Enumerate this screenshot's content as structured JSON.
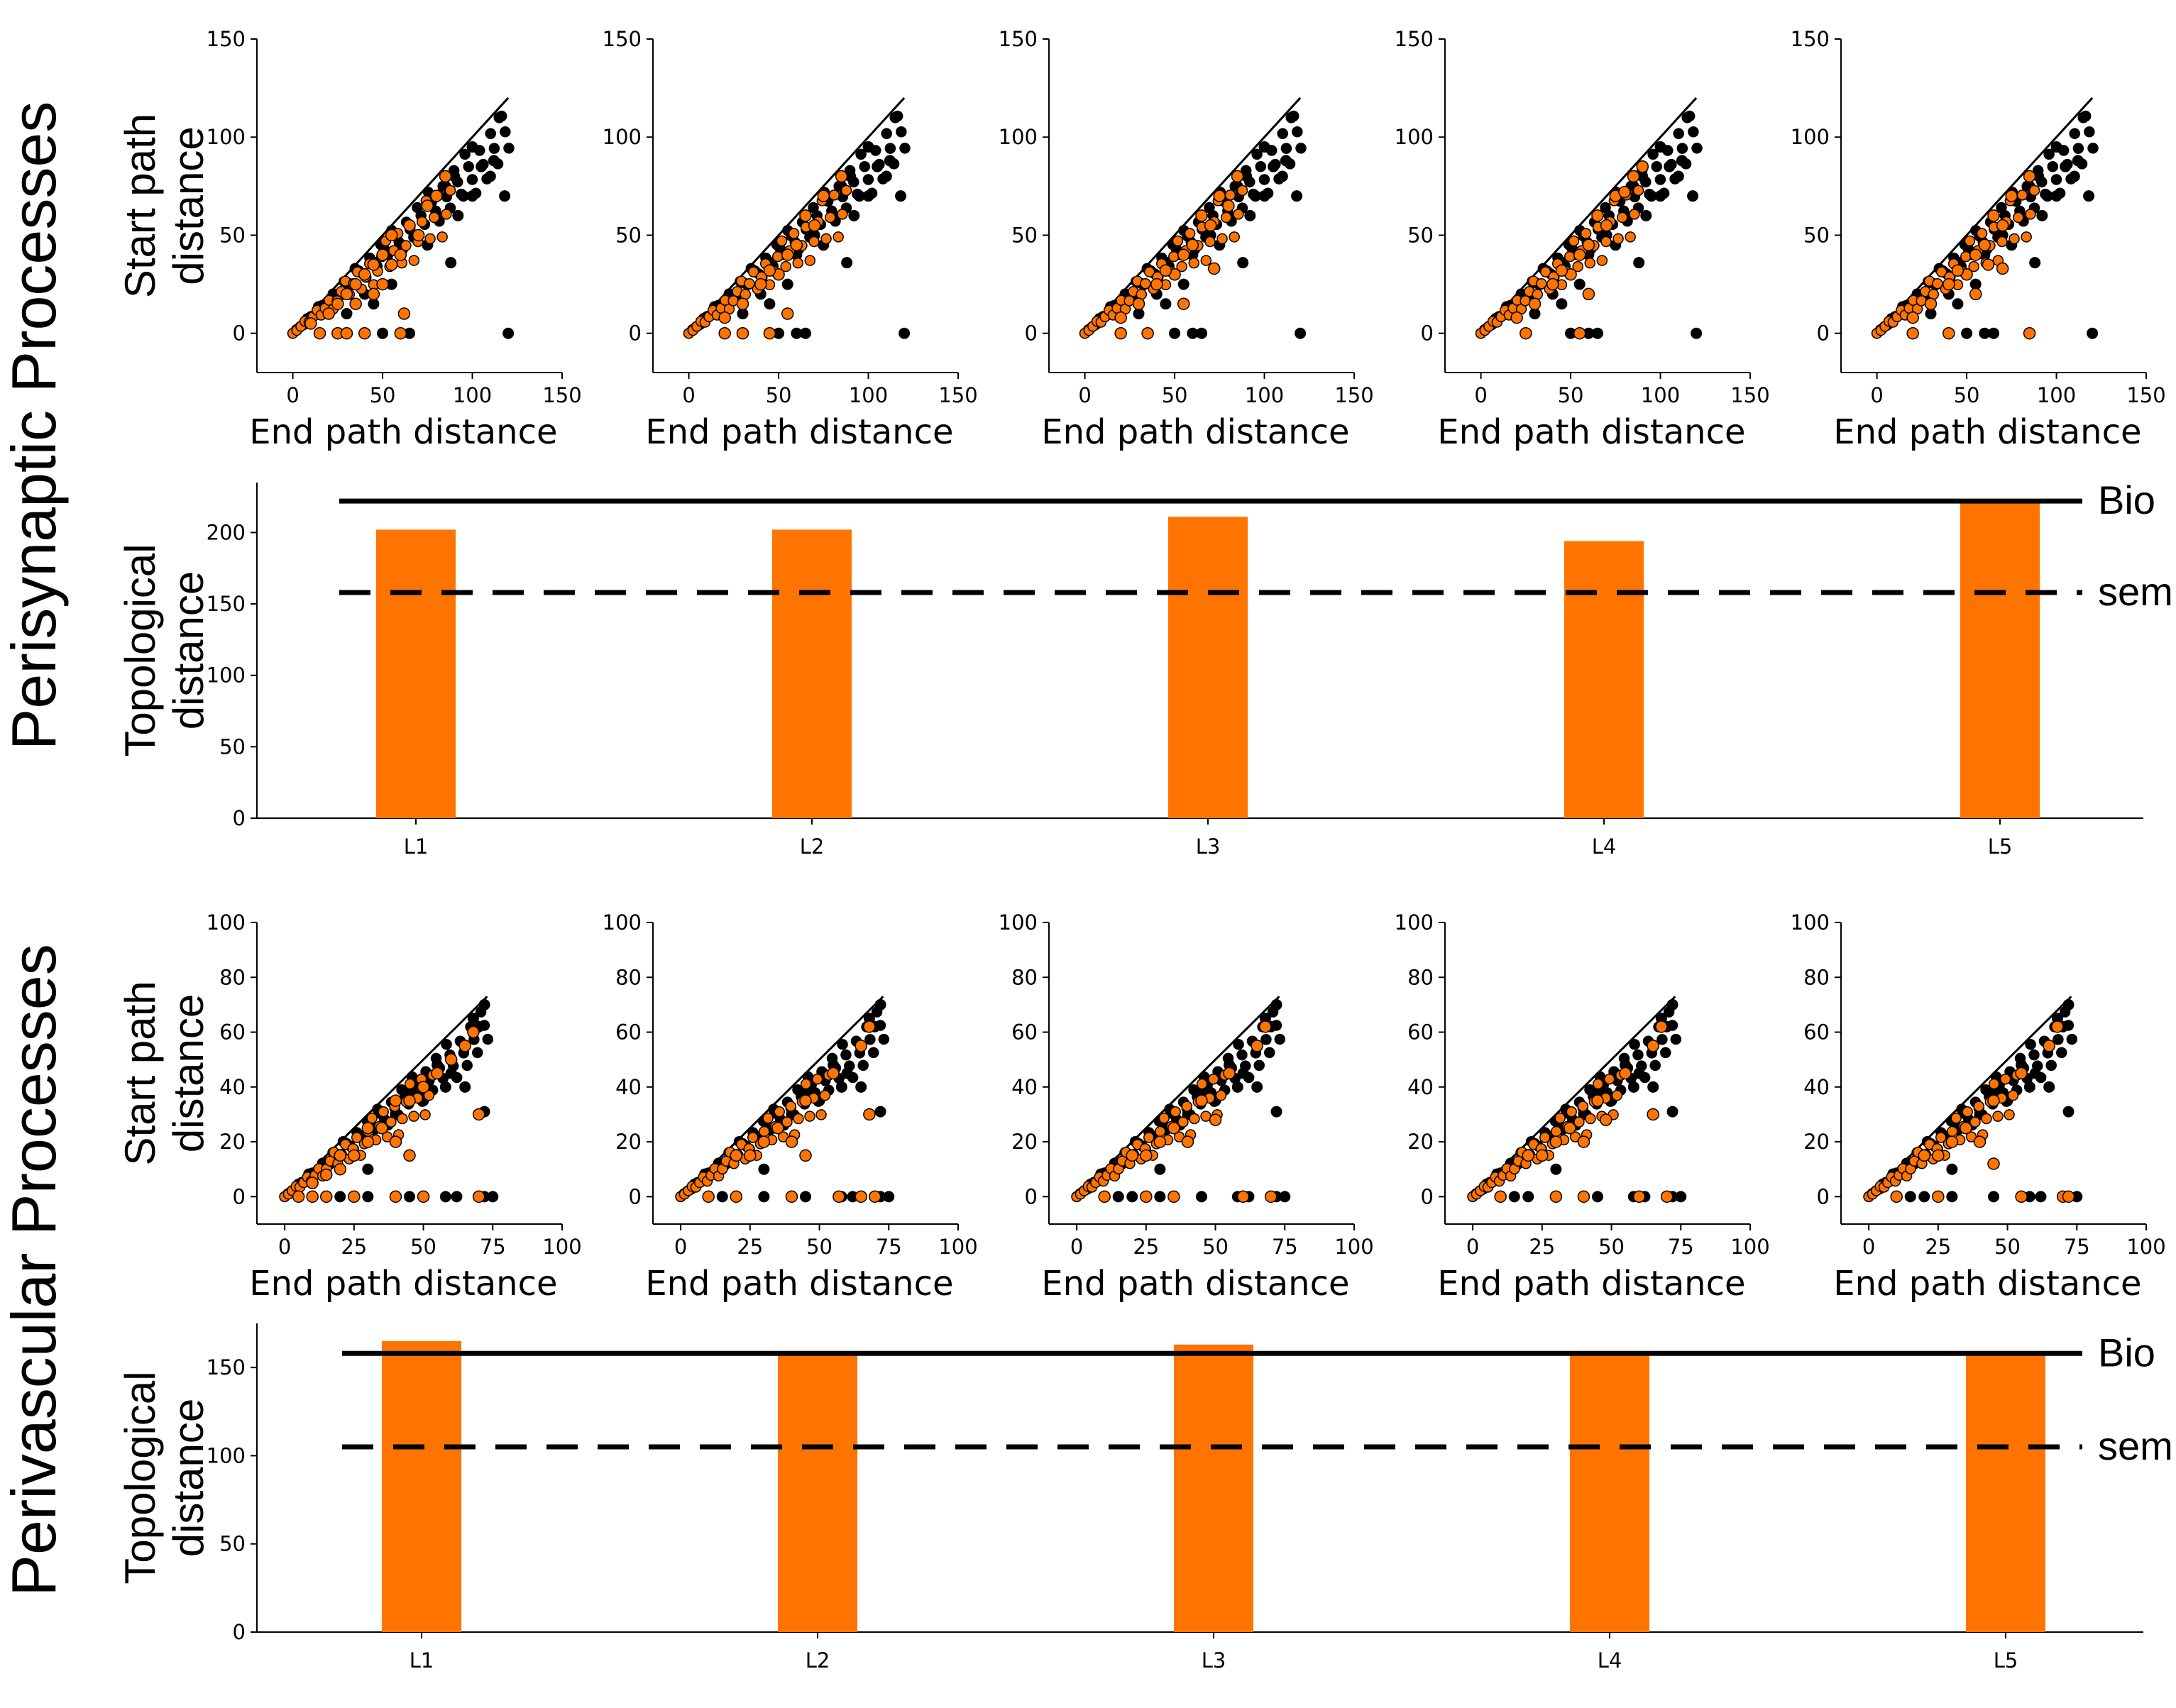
{
  "colors": {
    "model": "#ff7400",
    "bio": "#000000",
    "axis": "#000000"
  },
  "sections": [
    {
      "title": "Perisynaptic Processes"
    },
    {
      "title": "Perivascular Processes"
    }
  ],
  "chart_data": [
    {
      "type": "scatter",
      "section": "Perisynaptic Processes",
      "panels": [
        "L1",
        "L2",
        "L3",
        "L4",
        "L5"
      ],
      "xlabel": "End path distance",
      "ylabel": "Start path distance",
      "xlim": [
        -20,
        150
      ],
      "ylim": [
        -20,
        150
      ],
      "xticks": [
        0,
        50,
        100,
        150
      ],
      "yticks": [
        0,
        50,
        100,
        150
      ],
      "series": [
        {
          "name": "Bio",
          "color": "#000000",
          "points": [
            [
              120,
              0
            ],
            [
              88,
              36
            ],
            [
              118,
              70
            ],
            [
              92,
              60
            ],
            [
              100,
              70
            ],
            [
              105,
              85
            ],
            [
              112,
              88
            ],
            [
              110,
              80
            ],
            [
              60,
              40
            ],
            [
              70,
              50
            ],
            [
              80,
              60
            ],
            [
              75,
              45
            ],
            [
              95,
              70
            ],
            [
              55,
              25
            ],
            [
              45,
              15
            ],
            [
              60,
              0
            ],
            [
              65,
              0
            ],
            [
              40,
              20
            ],
            [
              50,
              0
            ],
            [
              85,
              75
            ],
            [
              115,
              110
            ],
            [
              100,
              95
            ],
            [
              90,
              80
            ],
            [
              30,
              10
            ]
          ]
        },
        {
          "name": "L1",
          "color": "#ff7400",
          "points": [
            [
              15,
              0
            ],
            [
              25,
              0
            ],
            [
              30,
              0
            ],
            [
              40,
              0
            ],
            [
              60,
              0
            ],
            [
              62,
              10
            ],
            [
              45,
              20
            ],
            [
              35,
              15
            ],
            [
              50,
              25
            ],
            [
              55,
              35
            ],
            [
              60,
              40
            ],
            [
              70,
              50
            ],
            [
              65,
              55
            ],
            [
              75,
              65
            ],
            [
              80,
              70
            ],
            [
              85,
              80
            ],
            [
              40,
              30
            ],
            [
              30,
              20
            ],
            [
              20,
              10
            ],
            [
              10,
              5
            ],
            [
              50,
              40
            ],
            [
              55,
              50
            ],
            [
              45,
              35
            ],
            [
              25,
              15
            ],
            [
              35,
              25
            ]
          ]
        }
      ],
      "extra_model_points": {
        "L2": [
          [
            20,
            0
          ],
          [
            30,
            0
          ],
          [
            45,
            0
          ],
          [
            55,
            10
          ],
          [
            50,
            30
          ],
          [
            60,
            45
          ],
          [
            70,
            55
          ],
          [
            40,
            25
          ],
          [
            30,
            15
          ],
          [
            20,
            8
          ],
          [
            65,
            60
          ],
          [
            75,
            70
          ],
          [
            85,
            80
          ],
          [
            55,
            40
          ],
          [
            45,
            32
          ]
        ],
        "L3": [
          [
            20,
            0
          ],
          [
            35,
            0
          ],
          [
            72,
            33
          ],
          [
            55,
            15
          ],
          [
            50,
            30
          ],
          [
            60,
            45
          ],
          [
            70,
            55
          ],
          [
            40,
            25
          ],
          [
            30,
            15
          ],
          [
            20,
            8
          ],
          [
            65,
            60
          ],
          [
            75,
            70
          ],
          [
            85,
            80
          ],
          [
            55,
            40
          ],
          [
            45,
            32
          ],
          [
            80,
            65
          ]
        ],
        "L4": [
          [
            25,
            0
          ],
          [
            55,
            0
          ],
          [
            60,
            20
          ],
          [
            50,
            30
          ],
          [
            60,
            45
          ],
          [
            70,
            55
          ],
          [
            40,
            25
          ],
          [
            30,
            15
          ],
          [
            20,
            8
          ],
          [
            65,
            60
          ],
          [
            75,
            70
          ],
          [
            85,
            80
          ],
          [
            55,
            40
          ],
          [
            45,
            32
          ],
          [
            80,
            72
          ],
          [
            90,
            85
          ]
        ],
        "L5": [
          [
            20,
            0
          ],
          [
            40,
            0
          ],
          [
            85,
            0
          ],
          [
            70,
            33
          ],
          [
            62,
            35
          ],
          [
            55,
            20
          ],
          [
            50,
            30
          ],
          [
            60,
            45
          ],
          [
            70,
            55
          ],
          [
            40,
            25
          ],
          [
            30,
            15
          ],
          [
            20,
            8
          ],
          [
            65,
            60
          ],
          [
            75,
            70
          ],
          [
            85,
            80
          ],
          [
            55,
            40
          ],
          [
            45,
            32
          ]
        ]
      }
    },
    {
      "type": "bar",
      "section": "Perisynaptic Processes",
      "categories": [
        "L1",
        "L2",
        "L3",
        "L4",
        "L5"
      ],
      "values": [
        202,
        202,
        211,
        194,
        221
      ],
      "ylabel": "Topological distance",
      "ylim": [
        0,
        235
      ],
      "yticks": [
        0,
        50,
        100,
        150,
        200
      ],
      "reference_lines": [
        {
          "label": "Bio",
          "value": 222,
          "style": "solid"
        },
        {
          "label": "sem",
          "value": 158,
          "style": "dashed"
        }
      ]
    },
    {
      "type": "scatter",
      "section": "Perivascular Processes",
      "panels": [
        "L1",
        "L2",
        "L3",
        "L4",
        "L5"
      ],
      "xlabel": "End path distance",
      "ylabel": "Start path distance",
      "xlim": [
        -10,
        100
      ],
      "ylim": [
        -10,
        100
      ],
      "xticks": [
        0,
        25,
        50,
        75,
        100
      ],
      "yticks": [
        0,
        20,
        40,
        60,
        80,
        100
      ],
      "series": [
        {
          "name": "Bio",
          "color": "#000000",
          "points": [
            [
              30,
              0
            ],
            [
              45,
              0
            ],
            [
              58,
              0
            ],
            [
              62,
              0
            ],
            [
              70,
              0
            ],
            [
              72,
              0
            ],
            [
              75,
              0
            ],
            [
              72,
              31
            ],
            [
              65,
              40
            ],
            [
              60,
              45
            ],
            [
              55,
              48
            ],
            [
              58,
              40
            ],
            [
              50,
              35
            ],
            [
              45,
              38
            ],
            [
              40,
              30
            ],
            [
              35,
              25
            ],
            [
              70,
              62
            ],
            [
              68,
              65
            ],
            [
              72,
              70
            ],
            [
              30,
              10
            ],
            [
              20,
              0
            ],
            [
              15,
              0
            ]
          ]
        },
        {
          "name": "L1",
          "color": "#ff7400",
          "points": [
            [
              5,
              0
            ],
            [
              10,
              0
            ],
            [
              15,
              0
            ],
            [
              25,
              0
            ],
            [
              40,
              0
            ],
            [
              50,
              0
            ],
            [
              70,
              0
            ],
            [
              70,
              30
            ],
            [
              45,
              15
            ],
            [
              40,
              20
            ],
            [
              35,
              25
            ],
            [
              30,
              20
            ],
            [
              25,
              15
            ],
            [
              20,
              10
            ],
            [
              15,
              8
            ],
            [
              45,
              35
            ],
            [
              50,
              40
            ],
            [
              55,
              45
            ],
            [
              60,
              50
            ],
            [
              65,
              55
            ],
            [
              68,
              60
            ],
            [
              30,
              25
            ],
            [
              40,
              35
            ],
            [
              20,
              15
            ],
            [
              10,
              5
            ]
          ]
        }
      ],
      "extra_model_points": {
        "L2": [
          [
            10,
            0
          ],
          [
            20,
            0
          ],
          [
            40,
            0
          ],
          [
            57,
            0
          ],
          [
            65,
            0
          ],
          [
            70,
            0
          ],
          [
            68,
            30
          ],
          [
            45,
            15
          ],
          [
            40,
            20
          ],
          [
            35,
            25
          ],
          [
            30,
            20
          ],
          [
            25,
            15
          ],
          [
            45,
            35
          ],
          [
            55,
            45
          ],
          [
            65,
            55
          ],
          [
            68,
            62
          ],
          [
            20,
            15
          ]
        ],
        "L3": [
          [
            10,
            0
          ],
          [
            25,
            0
          ],
          [
            35,
            0
          ],
          [
            60,
            0
          ],
          [
            70,
            0
          ],
          [
            40,
            20
          ],
          [
            35,
            25
          ],
          [
            30,
            20
          ],
          [
            25,
            15
          ],
          [
            45,
            35
          ],
          [
            55,
            45
          ],
          [
            65,
            55
          ],
          [
            68,
            62
          ],
          [
            20,
            15
          ],
          [
            50,
            28
          ]
        ],
        "L4": [
          [
            10,
            0
          ],
          [
            30,
            0
          ],
          [
            40,
            0
          ],
          [
            60,
            0
          ],
          [
            70,
            0
          ],
          [
            65,
            30
          ],
          [
            40,
            20
          ],
          [
            35,
            25
          ],
          [
            30,
            20
          ],
          [
            25,
            15
          ],
          [
            45,
            35
          ],
          [
            55,
            45
          ],
          [
            65,
            55
          ],
          [
            68,
            62
          ],
          [
            20,
            15
          ],
          [
            48,
            28
          ]
        ],
        "L5": [
          [
            10,
            0
          ],
          [
            25,
            0
          ],
          [
            55,
            0
          ],
          [
            70,
            0
          ],
          [
            72,
            0
          ],
          [
            40,
            20
          ],
          [
            35,
            25
          ],
          [
            30,
            20
          ],
          [
            25,
            15
          ],
          [
            45,
            35
          ],
          [
            55,
            45
          ],
          [
            65,
            55
          ],
          [
            68,
            62
          ],
          [
            20,
            15
          ],
          [
            45,
            12
          ]
        ]
      }
    },
    {
      "type": "bar",
      "section": "Perivascular Processes",
      "categories": [
        "L1",
        "L2",
        "L3",
        "L4",
        "L5"
      ],
      "values": [
        165,
        158,
        163,
        158,
        158
      ],
      "ylabel": "Topological distance",
      "ylim": [
        0,
        175
      ],
      "yticks": [
        0,
        50,
        100,
        150
      ],
      "reference_lines": [
        {
          "label": "Bio",
          "value": 158,
          "style": "solid"
        },
        {
          "label": "sem",
          "value": 105,
          "style": "dashed"
        }
      ]
    }
  ]
}
